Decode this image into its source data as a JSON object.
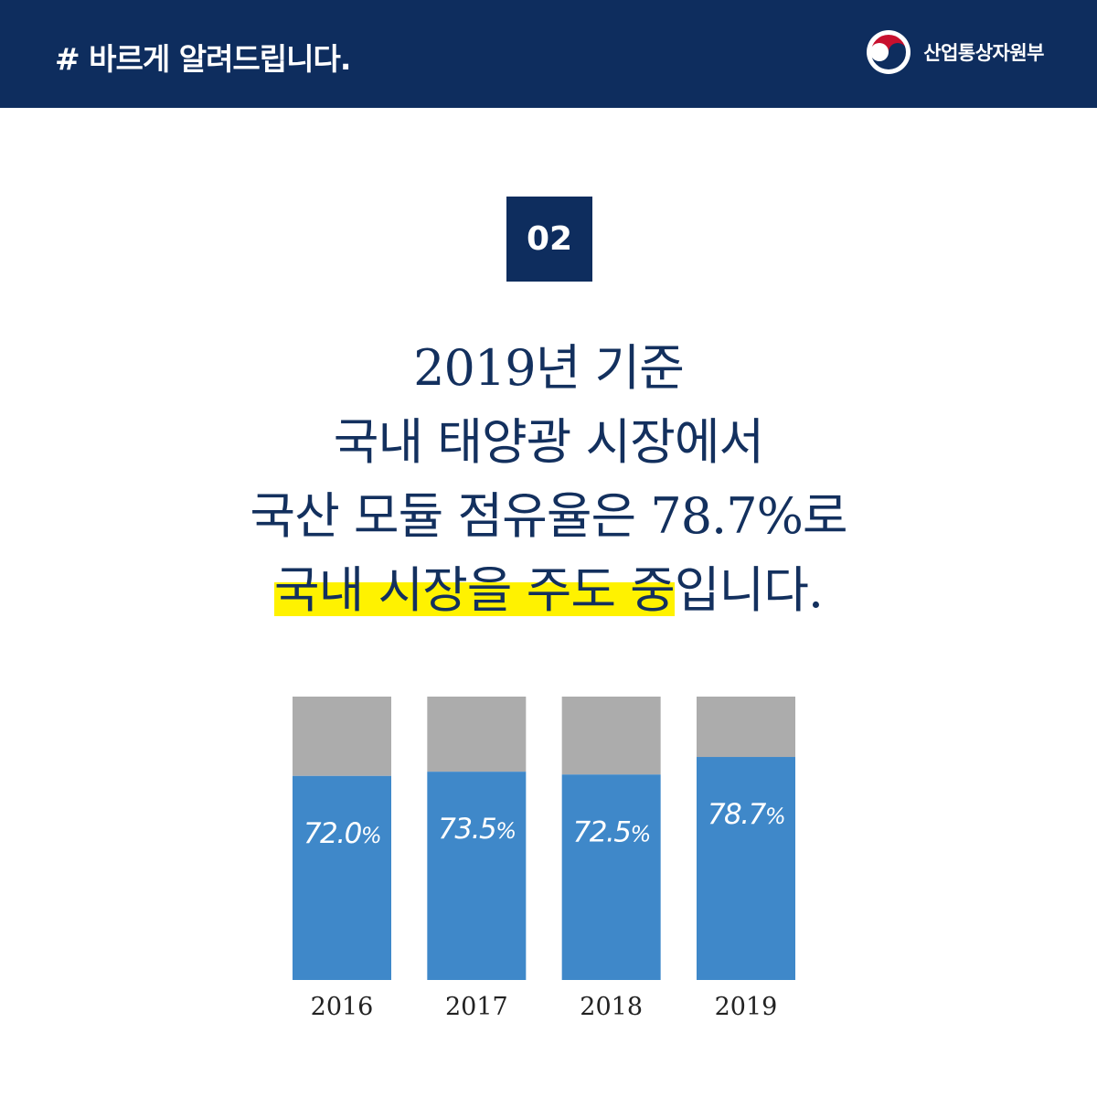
{
  "header": {
    "hashtag": "# 바르게 알려드립니다.",
    "ministry": "산업통상자원부",
    "logo_icon": "taegeuk-emblem-icon"
  },
  "badge": "02",
  "headline": {
    "line1": "2019년 기준",
    "line2": "국내 태양광 시장에서",
    "line3": "국산 모듈 점유율은 78.7%로",
    "line4_highlight": "국내 시장을 주도 중",
    "line4_rest": "입니다."
  },
  "colors": {
    "navy": "#0e2d5e",
    "bar_domestic": "#3f88c9",
    "bar_rest": "#acacac",
    "highlight": "#fff200"
  },
  "chart_data": {
    "type": "bar",
    "stacked": true,
    "categories": [
      "2016",
      "2017",
      "2018",
      "2019"
    ],
    "values": [
      72.0,
      73.5,
      72.5,
      78.7
    ],
    "value_labels": [
      "72.0%",
      "73.5%",
      "72.5%",
      "78.7%"
    ],
    "ylim": [
      0,
      100
    ],
    "unit": "%",
    "title": "",
    "xlabel": "",
    "ylabel": ""
  }
}
